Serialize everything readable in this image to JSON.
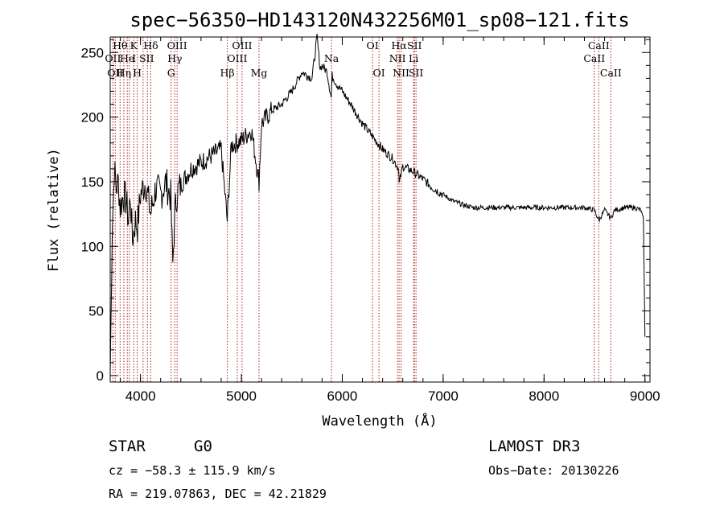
{
  "chart_data": {
    "type": "line",
    "title": "spec−56350−HD143120N432256M01_sp08−121.fits",
    "xlabel": "Wavelength (Å)",
    "ylabel": "Flux (relative)",
    "xlim": [
      3700,
      9050
    ],
    "ylim": [
      -5,
      262
    ],
    "xticks": [
      4000,
      5000,
      6000,
      7000,
      8000,
      9000
    ],
    "yticks": [
      0,
      50,
      100,
      150,
      200,
      250
    ],
    "series": [
      {
        "name": "spectrum",
        "x": [
          3700,
          3720,
          3740,
          3760,
          3780,
          3800,
          3830,
          3860,
          3880,
          3900,
          3920,
          3950,
          3970,
          4000,
          4050,
          4100,
          4150,
          4200,
          4250,
          4300,
          4320,
          4340,
          4360,
          4400,
          4500,
          4600,
          4700,
          4800,
          4860,
          4900,
          5000,
          5100,
          5175,
          5200,
          5300,
          5400,
          5500,
          5600,
          5700,
          5750,
          5780,
          5800,
          5850,
          5890,
          5900,
          5950,
          6000,
          6100,
          6200,
          6300,
          6400,
          6500,
          6560,
          6563,
          6600,
          6700,
          6800,
          6900,
          7000,
          7100,
          7200,
          7300,
          7500,
          7800,
          8000,
          8200,
          8400,
          8500,
          8542,
          8600,
          8662,
          8700,
          8800,
          8900,
          8960,
          8985,
          9000
        ],
        "values": [
          0,
          110,
          160,
          145,
          150,
          130,
          140,
          135,
          120,
          138,
          105,
          120,
          115,
          140,
          150,
          125,
          145,
          140,
          150,
          138,
          85,
          125,
          140,
          148,
          160,
          165,
          170,
          175,
          120,
          178,
          182,
          190,
          150,
          195,
          205,
          210,
          220,
          235,
          230,
          262,
          238,
          240,
          235,
          215,
          232,
          225,
          220,
          208,
          195,
          185,
          175,
          168,
          160,
          148,
          162,
          158,
          152,
          145,
          140,
          135,
          132,
          130,
          130,
          130,
          130,
          130,
          130,
          128,
          120,
          128,
          122,
          128,
          130,
          130,
          128,
          120,
          30
        ]
      }
    ],
    "spectral_lines": [
      {
        "wl": 3727,
        "label": "OII",
        "row": 1
      },
      {
        "wl": 3750,
        "label": "OII",
        "row": 2
      },
      {
        "wl": 3798,
        "label": "Hθ",
        "row": 0
      },
      {
        "wl": 3835,
        "label": "Hη",
        "row": 2
      },
      {
        "wl": 3869,
        "label": "He",
        "row": 1
      },
      {
        "wl": 3889,
        "label": "",
        "row": 1
      },
      {
        "wl": 3934,
        "label": "K",
        "row": 0
      },
      {
        "wl": 3968,
        "label": "H",
        "row": 2
      },
      {
        "wl": 4026,
        "label": "I SII",
        "row": 1
      },
      {
        "wl": 4069,
        "label": "",
        "row": 1
      },
      {
        "wl": 4102,
        "label": "Hδ",
        "row": 0
      },
      {
        "wl": 4304,
        "label": "G",
        "row": 2
      },
      {
        "wl": 4340,
        "label": "Hγ",
        "row": 1
      },
      {
        "wl": 4363,
        "label": "OIII",
        "row": 0
      },
      {
        "wl": 4861,
        "label": "Hβ",
        "row": 2
      },
      {
        "wl": 4959,
        "label": "OIII",
        "row": 1
      },
      {
        "wl": 5007,
        "label": "OIII",
        "row": 0
      },
      {
        "wl": 5175,
        "label": "Mg",
        "row": 2
      },
      {
        "wl": 5893,
        "label": "Na",
        "row": 1
      },
      {
        "wl": 6300,
        "label": "OI",
        "row": 0
      },
      {
        "wl": 6364,
        "label": "OI",
        "row": 2
      },
      {
        "wl": 6548,
        "label": "NII",
        "row": 1
      },
      {
        "wl": 6563,
        "label": "Hα",
        "row": 0
      },
      {
        "wl": 6583,
        "label": "NII",
        "row": 2
      },
      {
        "wl": 6707,
        "label": "Li",
        "row": 1
      },
      {
        "wl": 6716,
        "label": "SII",
        "row": 0
      },
      {
        "wl": 6731,
        "label": "SII",
        "row": 2
      },
      {
        "wl": 8498,
        "label": "CaII",
        "row": 1
      },
      {
        "wl": 8542,
        "label": "CaII",
        "row": 0
      },
      {
        "wl": 8662,
        "label": "CaII",
        "row": 2
      }
    ]
  },
  "info": {
    "object_class": "STAR",
    "subclass": "G0",
    "survey": "LAMOST DR3",
    "cz": "cz = −58.3 ± 115.9 km/s",
    "obs_date": "Obs−Date: 20130226",
    "coords": "RA = 219.07863, DEC =  42.21829"
  }
}
